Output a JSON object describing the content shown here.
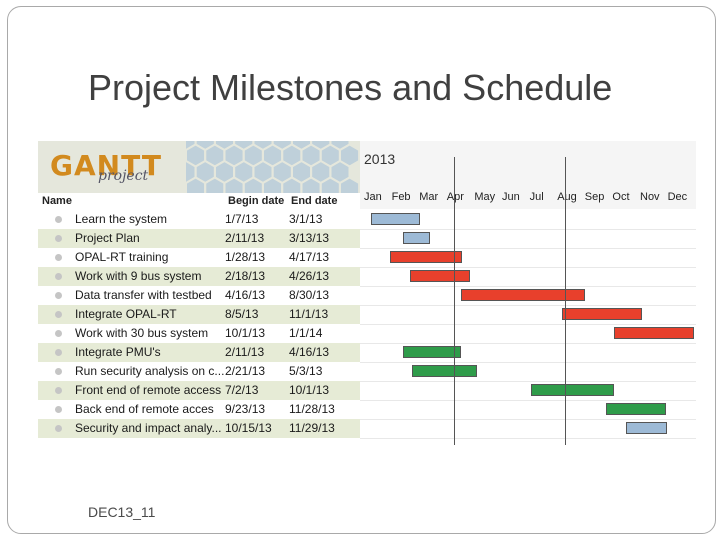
{
  "slide": {
    "title": "Project Milestones and Schedule",
    "footer": "DEC13_11"
  },
  "gantt": {
    "logo_main": "GANTT",
    "logo_sub": "project",
    "headers": {
      "name": "Name",
      "begin": "Begin date",
      "end": "End date"
    },
    "year": "2013",
    "months": [
      "Jan",
      "Feb",
      "Mar",
      "Apr",
      "May",
      "Jun",
      "Jul",
      "Aug",
      "Sep",
      "Oct",
      "Nov",
      "Dec"
    ],
    "colors": {
      "blue": "#9dbad6",
      "red": "#e8402c",
      "green": "#2f9c4a"
    },
    "tasks": [
      {
        "name": "Learn the system",
        "begin": "1/7/13",
        "end": "3/1/13",
        "color": "blue"
      },
      {
        "name": "Project Plan",
        "begin": "2/11/13",
        "end": "3/13/13",
        "color": "blue"
      },
      {
        "name": "OPAL-RT training",
        "begin": "1/28/13",
        "end": "4/17/13",
        "color": "red"
      },
      {
        "name": "Work with 9 bus system",
        "begin": "2/18/13",
        "end": "4/26/13",
        "color": "red"
      },
      {
        "name": "Data transfer with testbed",
        "begin": "4/16/13",
        "end": "8/30/13",
        "color": "red"
      },
      {
        "name": "Integrate OPAL-RT",
        "begin": "8/5/13",
        "end": "11/1/13",
        "color": "red"
      },
      {
        "name": "Work with 30 bus system",
        "begin": "10/1/13",
        "end": "1/1/14",
        "color": "red"
      },
      {
        "name": "Integrate PMU's",
        "begin": "2/11/13",
        "end": "4/16/13",
        "color": "green"
      },
      {
        "name": "Run security analysis on c...",
        "begin": "2/21/13",
        "end": "5/3/13",
        "color": "green"
      },
      {
        "name": "Front end of remote access",
        "begin": "7/2/13",
        "end": "10/1/13",
        "color": "green"
      },
      {
        "name": "Back end of remote acces",
        "begin": "9/23/13",
        "end": "11/28/13",
        "color": "green"
      },
      {
        "name": "Security and impact analy...",
        "begin": "10/15/13",
        "end": "11/29/13",
        "color": "blue"
      }
    ],
    "milestone_lines": [
      "4/8/13",
      "8/8/13"
    ]
  }
}
